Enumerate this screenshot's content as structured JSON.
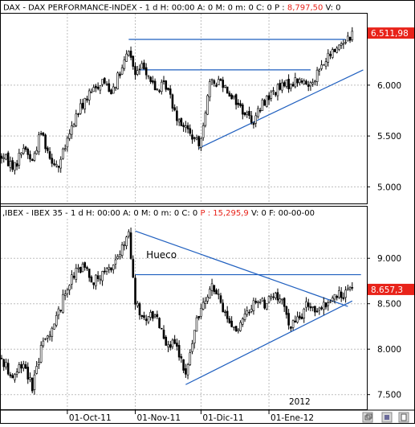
{
  "colors": {
    "background": "#ffffff",
    "frame": "#000000",
    "grid": "#b4b4b4",
    "up_candle": "#ffffff",
    "down_candle": "#000000",
    "trendline": "#1f5fbf",
    "price_tag_bg": "#e8231a",
    "price_tag_text": "#ffffff",
    "header_value": "#e8231a"
  },
  "chart_data": [
    {
      "type": "candlestick",
      "panel": "top",
      "header": {
        "symbol_prefix": "DAX - DAX PERFORMANCE-INDEX - 1 d H: 00:00 A: 0 M: 0 m: 0 C: 0 P : ",
        "value": "8,797,50",
        "suffix": " V: 0"
      },
      "yticks": [
        {
          "value": 5000,
          "label": "5.000"
        },
        {
          "value": 5500,
          "label": "5.500"
        },
        {
          "value": 6000,
          "label": "6.000"
        }
      ],
      "ylim": [
        4900,
        6600
      ],
      "last_price": {
        "value": 6511.98,
        "label": "6.511,98"
      },
      "trendlines": [
        {
          "from": {
            "day": 58,
            "value": 6450
          },
          "to": {
            "day": 157,
            "value": 6450
          }
        },
        {
          "from": {
            "day": 63,
            "value": 6150
          },
          "to": {
            "day": 141,
            "value": 6150
          }
        },
        {
          "from": {
            "day": 90,
            "value": 5380
          },
          "to": {
            "day": 165,
            "value": 6150
          }
        }
      ],
      "annotations": []
    },
    {
      "type": "candlestick",
      "panel": "bottom",
      "header": {
        "symbol_prefix": ",IBEX - IBEX 35 - 1 d H: 00:00 A: 0 M: 0 m: 0 C: 0 ",
        "value": "P : 15,295,9",
        "suffix": " V: 0 F: 00-00-00"
      },
      "yticks": [
        {
          "value": 7500,
          "label": "7.500"
        },
        {
          "value": 8000,
          "label": "8.000"
        },
        {
          "value": 8500,
          "label": "8.500"
        },
        {
          "value": 9000,
          "label": "9.000"
        }
      ],
      "ylim": [
        7400,
        9400
      ],
      "last_price": {
        "value": 8657.3,
        "label": "8.657,3"
      },
      "trendlines": [
        {
          "from": {
            "day": 61,
            "value": 9300
          },
          "to": {
            "day": 158,
            "value": 8470
          }
        },
        {
          "from": {
            "day": 61,
            "value": 8820
          },
          "to": {
            "day": 164,
            "value": 8820
          }
        },
        {
          "from": {
            "day": 84,
            "value": 7610
          },
          "to": {
            "day": 160,
            "value": 8530
          }
        }
      ],
      "annotations": [
        {
          "text": "Hueco",
          "day": 66,
          "value": 9000
        }
      ]
    }
  ],
  "x_axis": {
    "start_date": "2011-09-01",
    "year_label": "2012",
    "ticks": [
      {
        "day": 30,
        "label": "01-Oct-11"
      },
      {
        "day": 61,
        "label": "01-Nov-11"
      },
      {
        "day": 91,
        "label": "01-Dic-11"
      },
      {
        "day": 122,
        "label": "01-Ene-12"
      }
    ]
  },
  "status_bar": {
    "icons": [
      "window-restore-icon",
      "save-icon",
      "document-icon"
    ]
  }
}
